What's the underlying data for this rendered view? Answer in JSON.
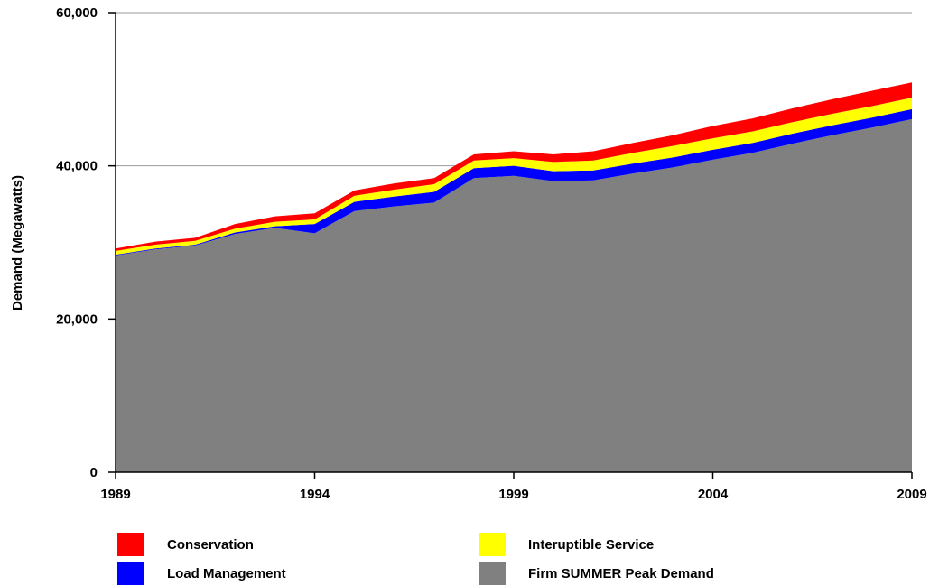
{
  "chart_data": {
    "type": "stacked_area",
    "y_label": "Demand (Megawatts)",
    "x": [
      1989,
      1990,
      1991,
      1992,
      1993,
      1994,
      1995,
      1996,
      1997,
      1998,
      1999,
      2000,
      2001,
      2002,
      2003,
      2004,
      2005,
      2006,
      2007,
      2008,
      2009
    ],
    "xlim": [
      1989,
      2009
    ],
    "xticks": [
      1989,
      1994,
      1999,
      2004,
      2009
    ],
    "ylim": [
      0,
      60000
    ],
    "yticks": [
      0,
      {
        "value": 20000,
        "label": "20,000"
      },
      {
        "value": 40000,
        "label": "40,000"
      },
      {
        "value": 60000,
        "label": "60,000"
      }
    ],
    "grid": true,
    "series": [
      {
        "name": "Firm SUMMER Peak Demand",
        "color": "#808080",
        "values": [
          28300,
          29100,
          29600,
          31100,
          31900,
          31200,
          34100,
          34700,
          35200,
          38400,
          38700,
          38000,
          38100,
          39000,
          39800,
          40800,
          41700,
          42900,
          44000,
          45000,
          46100
        ]
      },
      {
        "name": "Load Management",
        "color": "#0000ff",
        "values": [
          100,
          100,
          100,
          200,
          200,
          1200,
          1200,
          1300,
          1400,
          1300,
          1300,
          1300,
          1300,
          1300,
          1300,
          1300,
          1300,
          1300,
          1300,
          1300,
          1300
        ]
      },
      {
        "name": "Interuptible Service",
        "color": "#ffff00",
        "values": [
          500,
          500,
          500,
          500,
          600,
          600,
          800,
          900,
          1000,
          1000,
          1000,
          1200,
          1300,
          1400,
          1500,
          1500,
          1500,
          1500,
          1500,
          1500,
          1500
        ]
      },
      {
        "name": "Conservation",
        "color": "#ff0000",
        "values": [
          300,
          400,
          400,
          600,
          700,
          800,
          700,
          800,
          800,
          800,
          900,
          1000,
          1200,
          1300,
          1400,
          1600,
          1700,
          1800,
          1900,
          2000,
          2000
        ]
      }
    ]
  }
}
